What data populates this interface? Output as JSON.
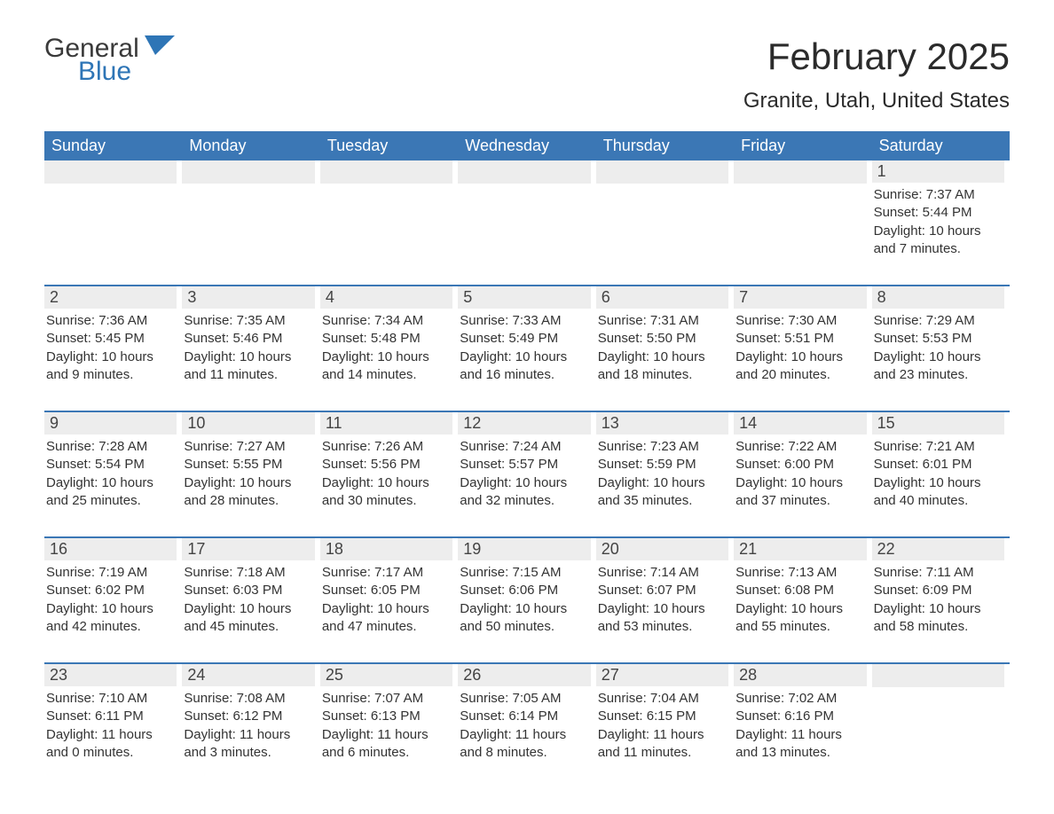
{
  "logo": {
    "general": "General",
    "blue": "Blue"
  },
  "title": "February 2025",
  "location": "Granite, Utah, United States",
  "colors": {
    "header_bg": "#3b77b5",
    "header_text": "#ffffff",
    "daynum_bg": "#ededed",
    "border": "#3b77b5",
    "logo_blue": "#2e75b6",
    "text": "#333333",
    "background": "#ffffff"
  },
  "weekdays": [
    "Sunday",
    "Monday",
    "Tuesday",
    "Wednesday",
    "Thursday",
    "Friday",
    "Saturday"
  ],
  "weeks": [
    [
      {
        "day": "",
        "sunrise": "",
        "sunset": "",
        "daylight": ""
      },
      {
        "day": "",
        "sunrise": "",
        "sunset": "",
        "daylight": ""
      },
      {
        "day": "",
        "sunrise": "",
        "sunset": "",
        "daylight": ""
      },
      {
        "day": "",
        "sunrise": "",
        "sunset": "",
        "daylight": ""
      },
      {
        "day": "",
        "sunrise": "",
        "sunset": "",
        "daylight": ""
      },
      {
        "day": "",
        "sunrise": "",
        "sunset": "",
        "daylight": ""
      },
      {
        "day": "1",
        "sunrise": "Sunrise: 7:37 AM",
        "sunset": "Sunset: 5:44 PM",
        "daylight": "Daylight: 10 hours and 7 minutes."
      }
    ],
    [
      {
        "day": "2",
        "sunrise": "Sunrise: 7:36 AM",
        "sunset": "Sunset: 5:45 PM",
        "daylight": "Daylight: 10 hours and 9 minutes."
      },
      {
        "day": "3",
        "sunrise": "Sunrise: 7:35 AM",
        "sunset": "Sunset: 5:46 PM",
        "daylight": "Daylight: 10 hours and 11 minutes."
      },
      {
        "day": "4",
        "sunrise": "Sunrise: 7:34 AM",
        "sunset": "Sunset: 5:48 PM",
        "daylight": "Daylight: 10 hours and 14 minutes."
      },
      {
        "day": "5",
        "sunrise": "Sunrise: 7:33 AM",
        "sunset": "Sunset: 5:49 PM",
        "daylight": "Daylight: 10 hours and 16 minutes."
      },
      {
        "day": "6",
        "sunrise": "Sunrise: 7:31 AM",
        "sunset": "Sunset: 5:50 PM",
        "daylight": "Daylight: 10 hours and 18 minutes."
      },
      {
        "day": "7",
        "sunrise": "Sunrise: 7:30 AM",
        "sunset": "Sunset: 5:51 PM",
        "daylight": "Daylight: 10 hours and 20 minutes."
      },
      {
        "day": "8",
        "sunrise": "Sunrise: 7:29 AM",
        "sunset": "Sunset: 5:53 PM",
        "daylight": "Daylight: 10 hours and 23 minutes."
      }
    ],
    [
      {
        "day": "9",
        "sunrise": "Sunrise: 7:28 AM",
        "sunset": "Sunset: 5:54 PM",
        "daylight": "Daylight: 10 hours and 25 minutes."
      },
      {
        "day": "10",
        "sunrise": "Sunrise: 7:27 AM",
        "sunset": "Sunset: 5:55 PM",
        "daylight": "Daylight: 10 hours and 28 minutes."
      },
      {
        "day": "11",
        "sunrise": "Sunrise: 7:26 AM",
        "sunset": "Sunset: 5:56 PM",
        "daylight": "Daylight: 10 hours and 30 minutes."
      },
      {
        "day": "12",
        "sunrise": "Sunrise: 7:24 AM",
        "sunset": "Sunset: 5:57 PM",
        "daylight": "Daylight: 10 hours and 32 minutes."
      },
      {
        "day": "13",
        "sunrise": "Sunrise: 7:23 AM",
        "sunset": "Sunset: 5:59 PM",
        "daylight": "Daylight: 10 hours and 35 minutes."
      },
      {
        "day": "14",
        "sunrise": "Sunrise: 7:22 AM",
        "sunset": "Sunset: 6:00 PM",
        "daylight": "Daylight: 10 hours and 37 minutes."
      },
      {
        "day": "15",
        "sunrise": "Sunrise: 7:21 AM",
        "sunset": "Sunset: 6:01 PM",
        "daylight": "Daylight: 10 hours and 40 minutes."
      }
    ],
    [
      {
        "day": "16",
        "sunrise": "Sunrise: 7:19 AM",
        "sunset": "Sunset: 6:02 PM",
        "daylight": "Daylight: 10 hours and 42 minutes."
      },
      {
        "day": "17",
        "sunrise": "Sunrise: 7:18 AM",
        "sunset": "Sunset: 6:03 PM",
        "daylight": "Daylight: 10 hours and 45 minutes."
      },
      {
        "day": "18",
        "sunrise": "Sunrise: 7:17 AM",
        "sunset": "Sunset: 6:05 PM",
        "daylight": "Daylight: 10 hours and 47 minutes."
      },
      {
        "day": "19",
        "sunrise": "Sunrise: 7:15 AM",
        "sunset": "Sunset: 6:06 PM",
        "daylight": "Daylight: 10 hours and 50 minutes."
      },
      {
        "day": "20",
        "sunrise": "Sunrise: 7:14 AM",
        "sunset": "Sunset: 6:07 PM",
        "daylight": "Daylight: 10 hours and 53 minutes."
      },
      {
        "day": "21",
        "sunrise": "Sunrise: 7:13 AM",
        "sunset": "Sunset: 6:08 PM",
        "daylight": "Daylight: 10 hours and 55 minutes."
      },
      {
        "day": "22",
        "sunrise": "Sunrise: 7:11 AM",
        "sunset": "Sunset: 6:09 PM",
        "daylight": "Daylight: 10 hours and 58 minutes."
      }
    ],
    [
      {
        "day": "23",
        "sunrise": "Sunrise: 7:10 AM",
        "sunset": "Sunset: 6:11 PM",
        "daylight": "Daylight: 11 hours and 0 minutes."
      },
      {
        "day": "24",
        "sunrise": "Sunrise: 7:08 AM",
        "sunset": "Sunset: 6:12 PM",
        "daylight": "Daylight: 11 hours and 3 minutes."
      },
      {
        "day": "25",
        "sunrise": "Sunrise: 7:07 AM",
        "sunset": "Sunset: 6:13 PM",
        "daylight": "Daylight: 11 hours and 6 minutes."
      },
      {
        "day": "26",
        "sunrise": "Sunrise: 7:05 AM",
        "sunset": "Sunset: 6:14 PM",
        "daylight": "Daylight: 11 hours and 8 minutes."
      },
      {
        "day": "27",
        "sunrise": "Sunrise: 7:04 AM",
        "sunset": "Sunset: 6:15 PM",
        "daylight": "Daylight: 11 hours and 11 minutes."
      },
      {
        "day": "28",
        "sunrise": "Sunrise: 7:02 AM",
        "sunset": "Sunset: 6:16 PM",
        "daylight": "Daylight: 11 hours and 13 minutes."
      },
      {
        "day": "",
        "sunrise": "",
        "sunset": "",
        "daylight": ""
      }
    ]
  ]
}
